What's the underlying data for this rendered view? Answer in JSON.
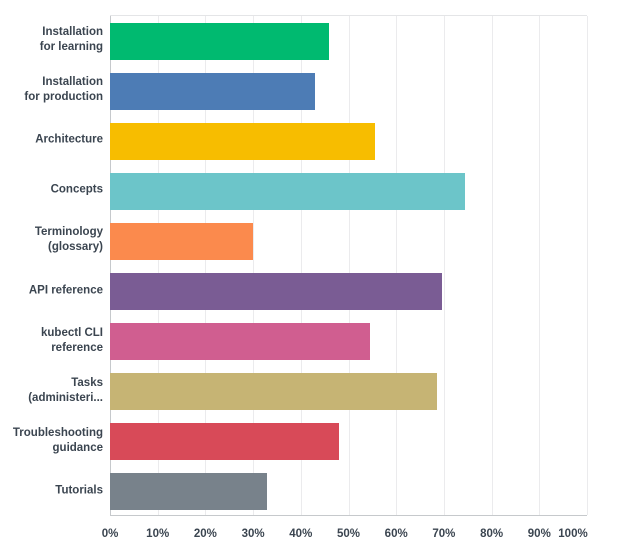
{
  "chart_data": {
    "type": "bar",
    "orientation": "horizontal",
    "title": "",
    "xlabel": "",
    "ylabel": "",
    "xlim": [
      0,
      100
    ],
    "grid": "vertical",
    "legend": "none",
    "categories": [
      "Installation for learning",
      "Installation for production",
      "Architecture",
      "Concepts",
      "Terminology (glossary)",
      "API reference",
      "kubectl CLI reference",
      "Tasks (administeri...",
      "Troubleshooting guidance",
      "Tutorials"
    ],
    "category_display_lines": [
      [
        "Installation",
        "for learning"
      ],
      [
        "Installation",
        "for production"
      ],
      [
        "Architecture"
      ],
      [
        "Concepts"
      ],
      [
        "Terminology",
        "(glossary)"
      ],
      [
        "API reference"
      ],
      [
        "kubectl CLI",
        "reference"
      ],
      [
        "Tasks",
        "(administeri..."
      ],
      [
        "Troubleshooting",
        "guidance"
      ],
      [
        "Tutorials"
      ]
    ],
    "values": [
      46,
      43,
      55.5,
      74.5,
      30,
      69.5,
      54.5,
      68.5,
      48,
      33
    ],
    "bar_colors": [
      "#00ba70",
      "#4d7cb5",
      "#f7bd00",
      "#6cc5c9",
      "#fb8a4d",
      "#7a5c94",
      "#d05e90",
      "#c6b474",
      "#d84a58",
      "#78828b"
    ],
    "x_ticks": [
      {
        "label": "0%",
        "value": 0
      },
      {
        "label": "10%",
        "value": 10
      },
      {
        "label": "20%",
        "value": 20
      },
      {
        "label": "30%",
        "value": 30
      },
      {
        "label": "40%",
        "value": 40
      },
      {
        "label": "50%",
        "value": 50
      },
      {
        "label": "60%",
        "value": 60
      },
      {
        "label": "70%",
        "value": 70
      },
      {
        "label": "80%",
        "value": 80
      },
      {
        "label": "90%",
        "value": 90
      },
      {
        "label": "100%",
        "value": 100
      }
    ]
  },
  "colors": {
    "background": "#ffffff",
    "gridline": "#ebebed",
    "axis": "#c6c9cc",
    "text": "#3b4550"
  }
}
